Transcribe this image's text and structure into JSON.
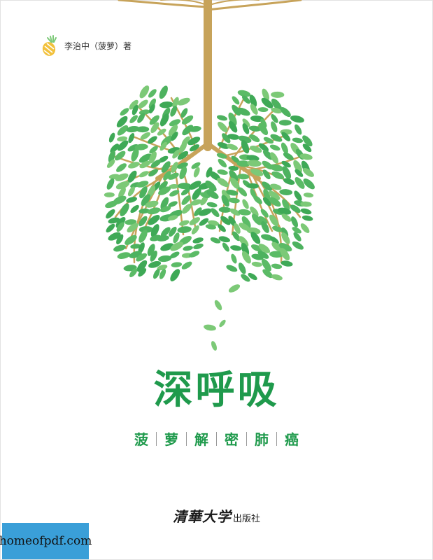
{
  "cover": {
    "author": "李治中（菠萝）著",
    "title": "深呼吸",
    "subtitle": [
      "菠",
      "萝",
      "解",
      "密",
      "肺",
      "癌"
    ],
    "publisher_script": "清華大学",
    "publisher_plain": "出版社",
    "watermark": "homeofpdf.com"
  },
  "colors": {
    "title_green": "#1f9a4c",
    "leaf_green": "#4db25f",
    "leaf_light": "#7cc977",
    "trunk_gold": "#c7a35a",
    "watermark_bg": "#3a9fd8"
  },
  "icons": {
    "logo": "pineapple-icon"
  }
}
